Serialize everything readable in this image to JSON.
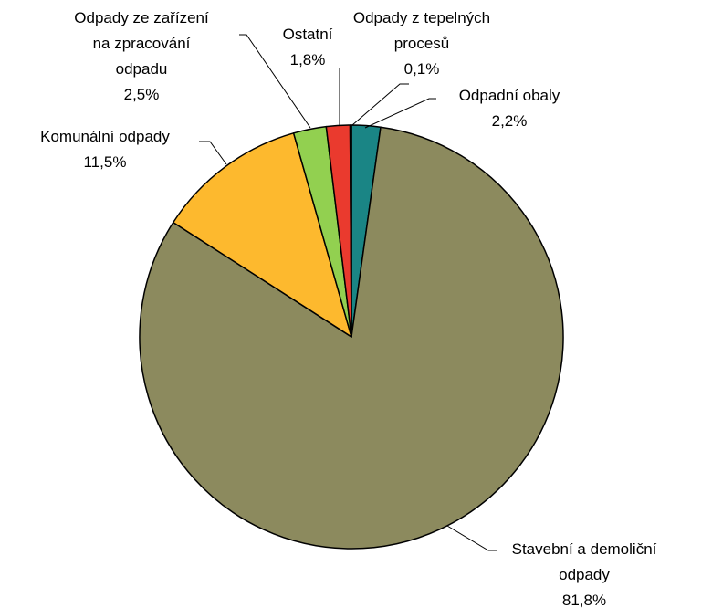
{
  "chart_data": {
    "type": "pie",
    "categories": [
      "Odpadní obaly",
      "Stavební a demoliční odpady",
      "Komunální odpady",
      "Odpady ze zařízení na zpracování odpadu",
      "Ostatní",
      "Odpady z tepelných procesů"
    ],
    "values": [
      2.2,
      81.8,
      11.5,
      2.5,
      1.8,
      0.1
    ],
    "value_labels": [
      "2,2%",
      "81,8%",
      "11,5%",
      "2,5%",
      "1,8%",
      "0,1%"
    ],
    "colors": [
      "#1a8585",
      "#8c8a5e",
      "#fdb92e",
      "#92d050",
      "#ea3a2e",
      "#7a0000"
    ]
  }
}
